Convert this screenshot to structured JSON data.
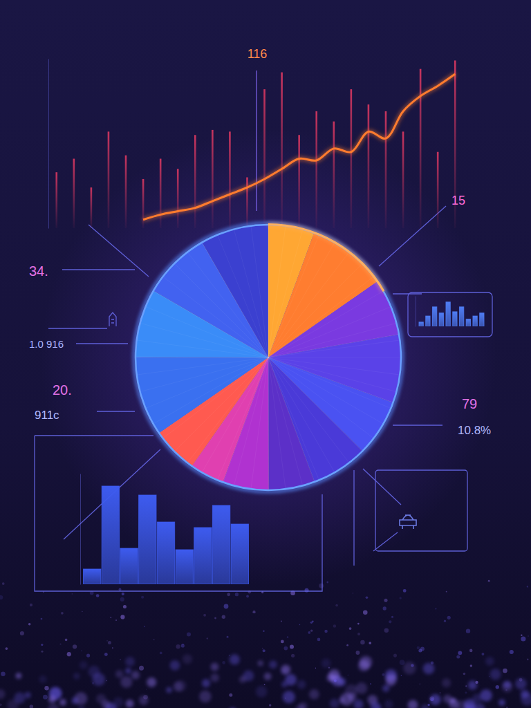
{
  "chart_data": [
    {
      "type": "bar",
      "categories": [
        null,
        null,
        null,
        null,
        null,
        null,
        null,
        null,
        null,
        null,
        null,
        null,
        null,
        null,
        null,
        null,
        null,
        null,
        null,
        null,
        null,
        null,
        null,
        null
      ],
      "series": [
        {
          "type": "bar",
          "color": "#c8345e",
          "values": [
            33,
            41,
            24,
            57,
            43,
            29,
            41,
            35,
            55,
            58,
            57,
            30,
            82,
            92,
            55,
            69,
            63,
            82,
            73,
            69,
            57,
            94,
            45,
            99
          ]
        },
        {
          "type": "line",
          "color": "#ff7b2e",
          "values": [
            null,
            null,
            null,
            null,
            null,
            5,
            8,
            10,
            12,
            16,
            20,
            24,
            29,
            35,
            41,
            40,
            47,
            45,
            57,
            53,
            69,
            78,
            84,
            91
          ]
        }
      ],
      "ylim": [
        0,
        100
      ],
      "tick_labels": false,
      "annotations": [
        "116"
      ]
    },
    {
      "type": "pie",
      "values": [
        5.6,
        9.7,
        6.9,
        8.3,
        6.9,
        6.9,
        5.6,
        5.6,
        4.2,
        5.6,
        9.7,
        8.3,
        8.3,
        8.3
      ],
      "colors": [
        "#ffa733",
        "#ff7d30",
        "#7a3ae0",
        "#5a42e8",
        "#4a52f2",
        "#4a3ad8",
        "#5c30c8",
        "#b032d0",
        "#e040b0",
        "#ff5a50",
        "#3a70f0",
        "#3a8cf8",
        "#4262f0",
        "#3b40d0"
      ],
      "annotations": [
        "15",
        "34.",
        "1.0 916",
        "20.",
        "911c",
        "79",
        "10.8%"
      ]
    },
    {
      "type": "bar",
      "categories": [
        null,
        null,
        null,
        null,
        null,
        null,
        null,
        null,
        null,
        null
      ],
      "values": [
        7,
        17,
        32,
        22,
        40,
        24,
        32,
        12,
        17,
        22
      ],
      "color": "#4f7df5",
      "ylim": [
        0,
        50
      ],
      "tick_labels": false
    },
    {
      "type": "bar",
      "categories": [
        null,
        null,
        null,
        null,
        null,
        null,
        null,
        null,
        null
      ],
      "values": [
        22,
        142,
        52,
        129,
        90,
        50,
        82,
        114,
        87
      ],
      "color": "#3d5bef",
      "ylim": [
        0,
        160
      ],
      "tick_labels": false
    }
  ]
}
